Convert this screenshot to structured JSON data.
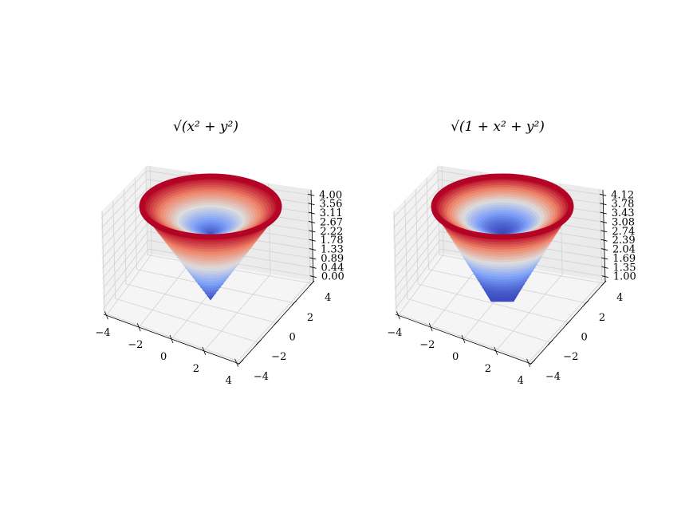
{
  "chart_data": [
    {
      "type": "surface",
      "title": "√(x² + y²)",
      "function": "sqrt(x^2+y^2)",
      "colormap": "coolwarm",
      "xlim": [
        -4,
        4
      ],
      "ylim": [
        -4,
        4
      ],
      "zlim": [
        0,
        4
      ],
      "x_ticks": [
        "−4",
        "−2",
        "0",
        "2",
        "4"
      ],
      "y_ticks": [
        "−4",
        "−2",
        "0",
        "2",
        "4"
      ],
      "z_ticks": [
        "0.00",
        "0.44",
        "0.89",
        "1.33",
        "1.78",
        "2.22",
        "2.67",
        "3.11",
        "3.56",
        "4.00"
      ],
      "r_max": 4,
      "grid": true
    },
    {
      "type": "surface",
      "title": "√(1 + x² + y²)",
      "function": "sqrt(1+x^2+y^2)",
      "colormap": "coolwarm",
      "xlim": [
        -4,
        4
      ],
      "ylim": [
        -4,
        4
      ],
      "zlim": [
        1,
        4.12
      ],
      "x_ticks": [
        "−4",
        "−2",
        "0",
        "2",
        "4"
      ],
      "y_ticks": [
        "−4",
        "−2",
        "0",
        "2",
        "4"
      ],
      "z_ticks": [
        "1.00",
        "1.35",
        "1.69",
        "2.04",
        "2.39",
        "2.74",
        "3.08",
        "3.43",
        "3.78",
        "4.12"
      ],
      "r_max": 4,
      "grid": true
    }
  ]
}
